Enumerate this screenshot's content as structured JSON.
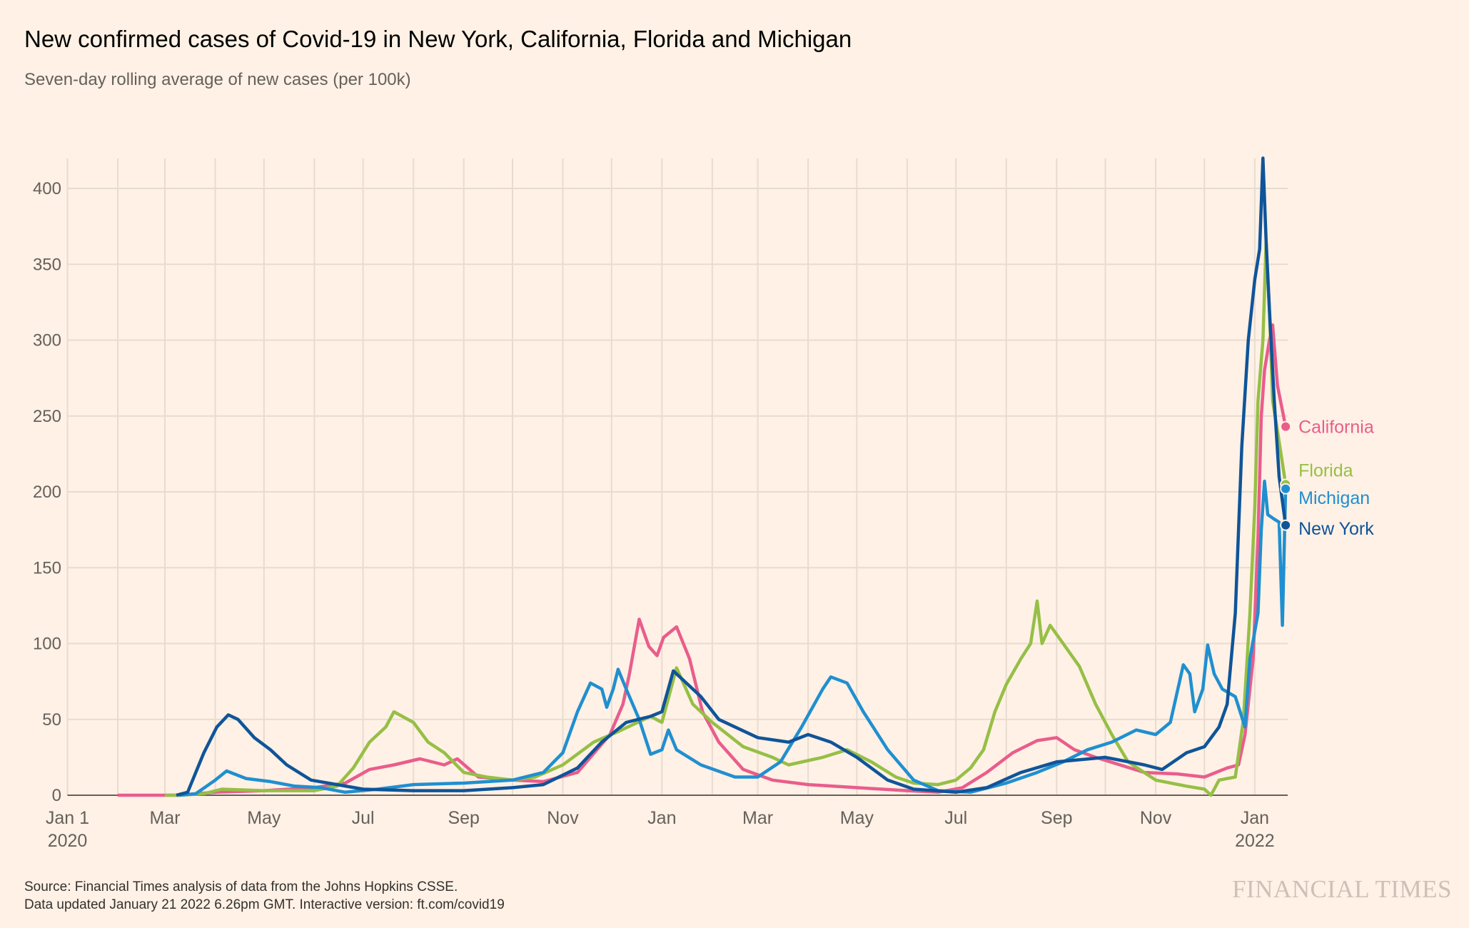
{
  "title": "New confirmed cases of Covid-19 in New York, California, Florida and Michigan",
  "subtitle": "Seven-day rolling average of new cases (per 100k)",
  "footer": {
    "source": "Source: Financial Times analysis of data from the Johns Hopkins CSSE.",
    "updated": "Data updated January 21 2022 6.26pm GMT. Interactive version: ft.com/covid19"
  },
  "logo": "FINANCIAL TIMES",
  "colors": {
    "background": "#fff1e5",
    "grid": "#e8dbd0",
    "axis": "#66605c"
  },
  "chart_data": {
    "type": "line",
    "title": "New confirmed cases of Covid-19 in New York, California, Florida and Michigan",
    "ylabel": "Seven-day rolling average of new cases (per 100k)",
    "xlabel": "",
    "xlim": [
      "2020-01-01",
      "2022-01-20"
    ],
    "ylim": [
      0,
      420
    ],
    "grid": true,
    "yticks": [
      0,
      50,
      100,
      150,
      200,
      250,
      300,
      350,
      400
    ],
    "xticks": [
      {
        "date": "2020-01-01",
        "label": "Jan 1",
        "sub": "2020"
      },
      {
        "date": "2020-03-01",
        "label": "Mar"
      },
      {
        "date": "2020-05-01",
        "label": "May"
      },
      {
        "date": "2020-07-01",
        "label": "Jul"
      },
      {
        "date": "2020-09-01",
        "label": "Sep"
      },
      {
        "date": "2020-11-01",
        "label": "Nov"
      },
      {
        "date": "2021-01-01",
        "label": "Jan"
      },
      {
        "date": "2021-03-01",
        "label": "Mar"
      },
      {
        "date": "2021-05-01",
        "label": "May"
      },
      {
        "date": "2021-07-01",
        "label": "Jul"
      },
      {
        "date": "2021-09-01",
        "label": "Sep"
      },
      {
        "date": "2021-11-01",
        "label": "Nov"
      },
      {
        "date": "2022-01-01",
        "label": "Jan",
        "sub": "2022"
      }
    ],
    "legend": "direct-labels-right",
    "series": [
      {
        "name": "California",
        "color": "#e95d8c",
        "points": [
          [
            "2020-02-01",
            0
          ],
          [
            "2020-03-10",
            0
          ],
          [
            "2020-04-01",
            2
          ],
          [
            "2020-05-01",
            3
          ],
          [
            "2020-06-01",
            5
          ],
          [
            "2020-06-20",
            8
          ],
          [
            "2020-07-05",
            17
          ],
          [
            "2020-07-20",
            20
          ],
          [
            "2020-08-05",
            24
          ],
          [
            "2020-08-20",
            20
          ],
          [
            "2020-08-28",
            24
          ],
          [
            "2020-09-10",
            12
          ],
          [
            "2020-10-01",
            10
          ],
          [
            "2020-10-20",
            9
          ],
          [
            "2020-11-10",
            15
          ],
          [
            "2020-11-30",
            40
          ],
          [
            "2020-12-08",
            60
          ],
          [
            "2020-12-12",
            80
          ],
          [
            "2020-12-18",
            116
          ],
          [
            "2020-12-24",
            98
          ],
          [
            "2020-12-29",
            92
          ],
          [
            "2021-01-02",
            104
          ],
          [
            "2021-01-10",
            111
          ],
          [
            "2021-01-18",
            90
          ],
          [
            "2021-01-26",
            55
          ],
          [
            "2021-02-05",
            35
          ],
          [
            "2021-02-20",
            17
          ],
          [
            "2021-03-10",
            10
          ],
          [
            "2021-04-01",
            7
          ],
          [
            "2021-05-01",
            5
          ],
          [
            "2021-06-01",
            3
          ],
          [
            "2021-06-20",
            2
          ],
          [
            "2021-07-05",
            5
          ],
          [
            "2021-07-20",
            15
          ],
          [
            "2021-08-05",
            28
          ],
          [
            "2021-08-20",
            36
          ],
          [
            "2021-09-01",
            38
          ],
          [
            "2021-09-12",
            30
          ],
          [
            "2021-09-25",
            25
          ],
          [
            "2021-10-10",
            20
          ],
          [
            "2021-10-25",
            15
          ],
          [
            "2021-11-15",
            14
          ],
          [
            "2021-12-01",
            12
          ],
          [
            "2021-12-15",
            18
          ],
          [
            "2021-12-22",
            20
          ],
          [
            "2021-12-26",
            40
          ],
          [
            "2021-12-31",
            90
          ],
          [
            "2022-01-03",
            170
          ],
          [
            "2022-01-05",
            250
          ],
          [
            "2022-01-07",
            280
          ],
          [
            "2022-01-10",
            300
          ],
          [
            "2022-01-12",
            310
          ],
          [
            "2022-01-15",
            270
          ],
          [
            "2022-01-20",
            243
          ]
        ]
      },
      {
        "name": "Florida",
        "color": "#96bf46",
        "points": [
          [
            "2020-03-01",
            0
          ],
          [
            "2020-03-10",
            0
          ],
          [
            "2020-03-25",
            1
          ],
          [
            "2020-04-05",
            4
          ],
          [
            "2020-05-01",
            3
          ],
          [
            "2020-06-01",
            3
          ],
          [
            "2020-06-15",
            6
          ],
          [
            "2020-06-25",
            18
          ],
          [
            "2020-07-05",
            35
          ],
          [
            "2020-07-15",
            45
          ],
          [
            "2020-07-20",
            55
          ],
          [
            "2020-08-01",
            48
          ],
          [
            "2020-08-10",
            35
          ],
          [
            "2020-08-20",
            28
          ],
          [
            "2020-09-01",
            15
          ],
          [
            "2020-09-15",
            12
          ],
          [
            "2020-10-01",
            10
          ],
          [
            "2020-10-15",
            12
          ],
          [
            "2020-11-01",
            20
          ],
          [
            "2020-11-20",
            35
          ],
          [
            "2020-12-05",
            42
          ],
          [
            "2020-12-25",
            52
          ],
          [
            "2021-01-01",
            48
          ],
          [
            "2021-01-10",
            84
          ],
          [
            "2021-01-20",
            60
          ],
          [
            "2021-02-01",
            48
          ],
          [
            "2021-02-20",
            32
          ],
          [
            "2021-03-10",
            25
          ],
          [
            "2021-03-20",
            20
          ],
          [
            "2021-04-10",
            25
          ],
          [
            "2021-04-25",
            30
          ],
          [
            "2021-05-10",
            22
          ],
          [
            "2021-05-25",
            12
          ],
          [
            "2021-06-05",
            8
          ],
          [
            "2021-06-20",
            7
          ],
          [
            "2021-07-01",
            10
          ],
          [
            "2021-07-10",
            18
          ],
          [
            "2021-07-18",
            30
          ],
          [
            "2021-07-25",
            55
          ],
          [
            "2021-08-01",
            73
          ],
          [
            "2021-08-10",
            90
          ],
          [
            "2021-08-16",
            100
          ],
          [
            "2021-08-20",
            128
          ],
          [
            "2021-08-23",
            100
          ],
          [
            "2021-08-28",
            112
          ],
          [
            "2021-09-05",
            100
          ],
          [
            "2021-09-15",
            85
          ],
          [
            "2021-09-25",
            60
          ],
          [
            "2021-10-05",
            40
          ],
          [
            "2021-10-15",
            22
          ],
          [
            "2021-11-01",
            10
          ],
          [
            "2021-11-20",
            6
          ],
          [
            "2021-12-01",
            4
          ],
          [
            "2021-12-05",
            0
          ],
          [
            "2021-12-10",
            10
          ],
          [
            "2021-12-20",
            12
          ],
          [
            "2021-12-25",
            50
          ],
          [
            "2021-12-29",
            120
          ],
          [
            "2022-01-01",
            190
          ],
          [
            "2022-01-03",
            260
          ],
          [
            "2022-01-06",
            300
          ],
          [
            "2022-01-08",
            365
          ],
          [
            "2022-01-10",
            320
          ],
          [
            "2022-01-12",
            260
          ],
          [
            "2022-01-15",
            240
          ],
          [
            "2022-01-20",
            205
          ]
        ]
      },
      {
        "name": "Michigan",
        "color": "#208fd0",
        "points": [
          [
            "2020-03-10",
            0
          ],
          [
            "2020-03-20",
            1
          ],
          [
            "2020-04-01",
            10
          ],
          [
            "2020-04-08",
            16
          ],
          [
            "2020-04-20",
            11
          ],
          [
            "2020-05-05",
            9
          ],
          [
            "2020-05-20",
            6
          ],
          [
            "2020-06-05",
            5
          ],
          [
            "2020-06-20",
            2
          ],
          [
            "2020-07-10",
            4
          ],
          [
            "2020-08-01",
            7
          ],
          [
            "2020-09-01",
            8
          ],
          [
            "2020-10-01",
            10
          ],
          [
            "2020-10-20",
            15
          ],
          [
            "2020-11-01",
            28
          ],
          [
            "2020-11-10",
            55
          ],
          [
            "2020-11-18",
            74
          ],
          [
            "2020-11-25",
            70
          ],
          [
            "2020-11-28",
            58
          ],
          [
            "2020-12-02",
            70
          ],
          [
            "2020-12-05",
            83
          ],
          [
            "2020-12-10",
            70
          ],
          [
            "2020-12-18",
            50
          ],
          [
            "2020-12-25",
            27
          ],
          [
            "2021-01-01",
            30
          ],
          [
            "2021-01-05",
            43
          ],
          [
            "2021-01-10",
            30
          ],
          [
            "2021-01-25",
            20
          ],
          [
            "2021-02-15",
            12
          ],
          [
            "2021-03-01",
            12
          ],
          [
            "2021-03-15",
            22
          ],
          [
            "2021-03-28",
            45
          ],
          [
            "2021-04-10",
            70
          ],
          [
            "2021-04-15",
            78
          ],
          [
            "2021-04-25",
            74
          ],
          [
            "2021-05-05",
            55
          ],
          [
            "2021-05-20",
            30
          ],
          [
            "2021-06-05",
            10
          ],
          [
            "2021-06-20",
            3
          ],
          [
            "2021-07-10",
            2
          ],
          [
            "2021-08-01",
            8
          ],
          [
            "2021-08-20",
            15
          ],
          [
            "2021-09-05",
            22
          ],
          [
            "2021-09-20",
            30
          ],
          [
            "2021-10-05",
            35
          ],
          [
            "2021-10-20",
            43
          ],
          [
            "2021-11-01",
            40
          ],
          [
            "2021-11-10",
            48
          ],
          [
            "2021-11-18",
            86
          ],
          [
            "2021-11-22",
            80
          ],
          [
            "2021-11-25",
            55
          ],
          [
            "2021-11-30",
            70
          ],
          [
            "2021-12-03",
            99
          ],
          [
            "2021-12-07",
            80
          ],
          [
            "2021-12-12",
            70
          ],
          [
            "2021-12-20",
            65
          ],
          [
            "2021-12-26",
            45
          ],
          [
            "2021-12-29",
            90
          ],
          [
            "2022-01-03",
            120
          ],
          [
            "2022-01-05",
            175
          ],
          [
            "2022-01-07",
            207
          ],
          [
            "2022-01-09",
            185
          ],
          [
            "2022-01-13",
            182
          ],
          [
            "2022-01-16",
            180
          ],
          [
            "2022-01-18",
            112
          ],
          [
            "2022-01-20",
            202
          ]
        ]
      },
      {
        "name": "New York",
        "color": "#0f5499",
        "points": [
          [
            "2020-03-08",
            0
          ],
          [
            "2020-03-15",
            2
          ],
          [
            "2020-03-25",
            28
          ],
          [
            "2020-04-02",
            45
          ],
          [
            "2020-04-09",
            53
          ],
          [
            "2020-04-15",
            50
          ],
          [
            "2020-04-25",
            38
          ],
          [
            "2020-05-05",
            30
          ],
          [
            "2020-05-15",
            20
          ],
          [
            "2020-05-30",
            10
          ],
          [
            "2020-06-15",
            7
          ],
          [
            "2020-07-01",
            4
          ],
          [
            "2020-08-01",
            3
          ],
          [
            "2020-09-01",
            3
          ],
          [
            "2020-10-01",
            5
          ],
          [
            "2020-10-20",
            7
          ],
          [
            "2020-11-10",
            18
          ],
          [
            "2020-11-25",
            35
          ],
          [
            "2020-12-10",
            48
          ],
          [
            "2020-12-25",
            52
          ],
          [
            "2021-01-01",
            55
          ],
          [
            "2021-01-08",
            82
          ],
          [
            "2021-01-15",
            75
          ],
          [
            "2021-01-25",
            65
          ],
          [
            "2021-02-05",
            50
          ],
          [
            "2021-02-15",
            45
          ],
          [
            "2021-03-01",
            38
          ],
          [
            "2021-03-20",
            35
          ],
          [
            "2021-04-01",
            40
          ],
          [
            "2021-04-15",
            35
          ],
          [
            "2021-05-01",
            25
          ],
          [
            "2021-05-20",
            10
          ],
          [
            "2021-06-05",
            4
          ],
          [
            "2021-07-01",
            2
          ],
          [
            "2021-07-20",
            5
          ],
          [
            "2021-08-10",
            15
          ],
          [
            "2021-09-01",
            22
          ],
          [
            "2021-10-01",
            25
          ],
          [
            "2021-10-25",
            20
          ],
          [
            "2021-11-05",
            17
          ],
          [
            "2021-11-20",
            28
          ],
          [
            "2021-12-01",
            32
          ],
          [
            "2021-12-10",
            45
          ],
          [
            "2021-12-15",
            60
          ],
          [
            "2021-12-20",
            120
          ],
          [
            "2021-12-24",
            230
          ],
          [
            "2021-12-28",
            300
          ],
          [
            "2022-01-01",
            340
          ],
          [
            "2022-01-04",
            360
          ],
          [
            "2022-01-06",
            420
          ],
          [
            "2022-01-08",
            365
          ],
          [
            "2022-01-10",
            320
          ],
          [
            "2022-01-13",
            260
          ],
          [
            "2022-01-16",
            210
          ],
          [
            "2022-01-20",
            178
          ]
        ]
      }
    ]
  }
}
